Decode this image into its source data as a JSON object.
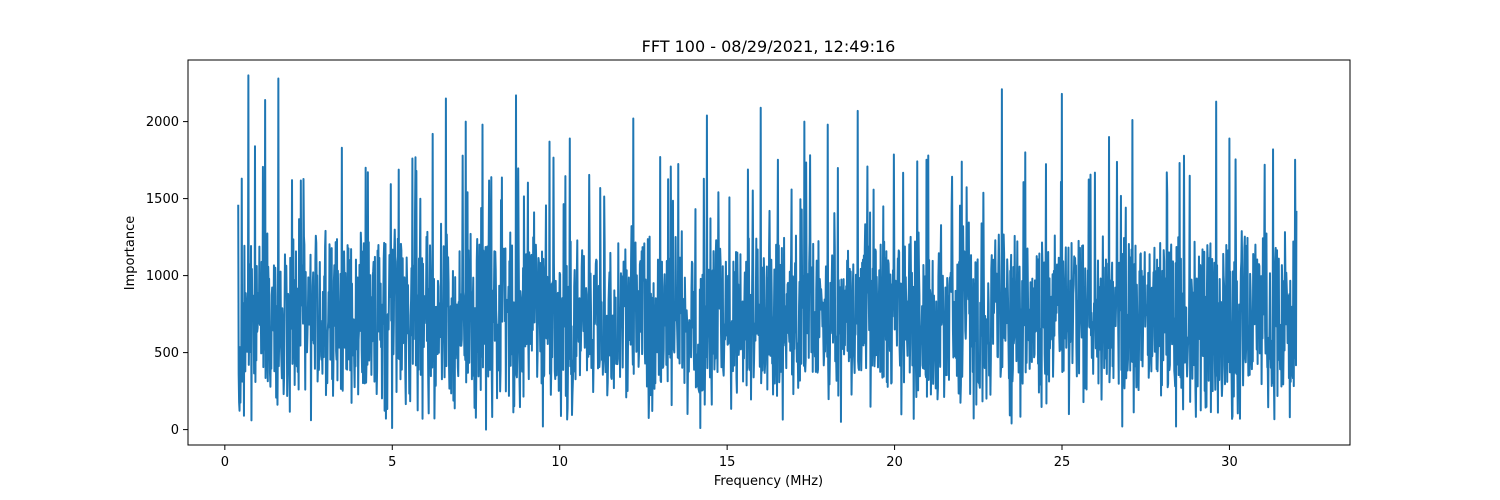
{
  "chart_data": {
    "type": "line",
    "title": "FFT 100 - 08/29/2021, 12:49:16",
    "xlabel": "Frequency (MHz)",
    "ylabel": "Importance",
    "xlim": [
      -1.1,
      33.6
    ],
    "ylim": [
      -100,
      2400
    ],
    "xticks": [
      0,
      5,
      10,
      15,
      20,
      25,
      30
    ],
    "yticks": [
      0,
      500,
      1000,
      1500,
      2000
    ],
    "xtick_labels": [
      "0",
      "5",
      "10",
      "15",
      "20",
      "25",
      "30"
    ],
    "ytick_labels": [
      "0",
      "500",
      "1000",
      "1500",
      "2000"
    ],
    "grid": false,
    "legend": "none",
    "series": [
      {
        "color": "#1f77b4",
        "x_range": [
          0.4,
          32.0
        ],
        "typical_range": [
          300,
          1200
        ],
        "min": 0,
        "max": 2300,
        "peaks": [
          {
            "x": 0.4,
            "y": 1460
          },
          {
            "x": 0.5,
            "y": 1630
          },
          {
            "x": 0.7,
            "y": 2300
          },
          {
            "x": 0.9,
            "y": 1840
          },
          {
            "x": 1.2,
            "y": 2140
          },
          {
            "x": 1.6,
            "y": 2280
          },
          {
            "x": 2.0,
            "y": 1620
          },
          {
            "x": 3.5,
            "y": 1830
          },
          {
            "x": 4.2,
            "y": 1700
          },
          {
            "x": 5.6,
            "y": 1760
          },
          {
            "x": 6.2,
            "y": 1920
          },
          {
            "x": 6.6,
            "y": 2150
          },
          {
            "x": 7.2,
            "y": 2000
          },
          {
            "x": 7.7,
            "y": 1980
          },
          {
            "x": 8.7,
            "y": 2170
          },
          {
            "x": 9.7,
            "y": 1870
          },
          {
            "x": 10.3,
            "y": 1890
          },
          {
            "x": 12.2,
            "y": 2020
          },
          {
            "x": 13.0,
            "y": 1770
          },
          {
            "x": 14.4,
            "y": 2040
          },
          {
            "x": 16.0,
            "y": 2090
          },
          {
            "x": 17.3,
            "y": 2000
          },
          {
            "x": 18.0,
            "y": 1980
          },
          {
            "x": 18.9,
            "y": 2070
          },
          {
            "x": 21.0,
            "y": 1780
          },
          {
            "x": 22.0,
            "y": 1740
          },
          {
            "x": 23.2,
            "y": 2210
          },
          {
            "x": 23.9,
            "y": 1800
          },
          {
            "x": 25.0,
            "y": 2180
          },
          {
            "x": 26.4,
            "y": 1900
          },
          {
            "x": 27.1,
            "y": 2010
          },
          {
            "x": 29.6,
            "y": 2130
          },
          {
            "x": 30.0,
            "y": 1890
          },
          {
            "x": 31.3,
            "y": 1820
          },
          {
            "x": 32.0,
            "y": 1420
          }
        ],
        "troughs": [
          {
            "x": 0.8,
            "y": 60
          },
          {
            "x": 5.0,
            "y": 10
          },
          {
            "x": 7.8,
            "y": 0
          },
          {
            "x": 9.5,
            "y": 20
          },
          {
            "x": 14.2,
            "y": 10
          },
          {
            "x": 18.4,
            "y": 50
          },
          {
            "x": 23.5,
            "y": 40
          },
          {
            "x": 26.8,
            "y": 20
          },
          {
            "x": 28.4,
            "y": 20
          },
          {
            "x": 31.8,
            "y": 80
          }
        ]
      }
    ]
  }
}
